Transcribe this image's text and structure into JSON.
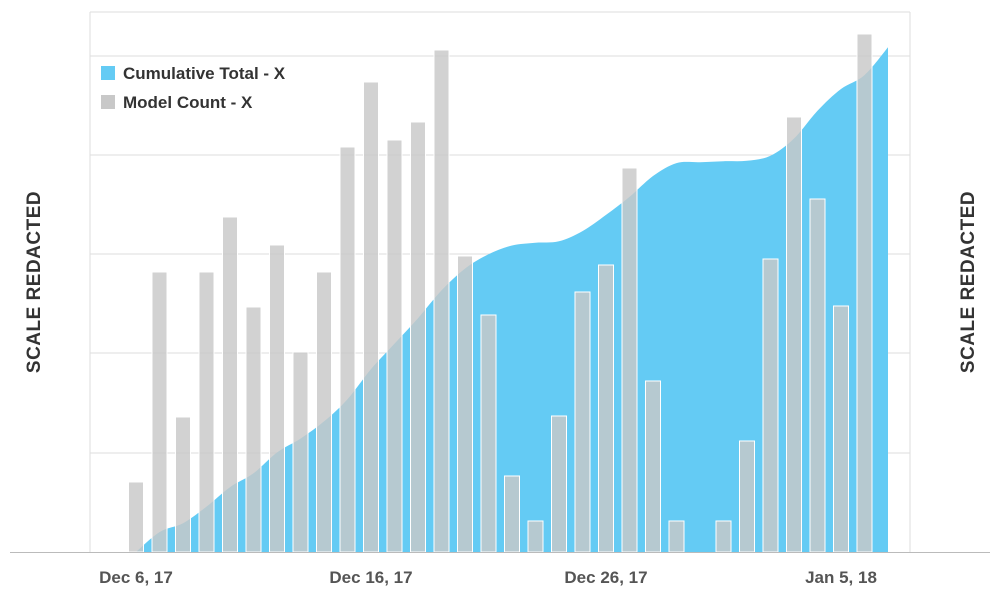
{
  "chart_data": {
    "type": "bar",
    "title": "",
    "xlabel": "",
    "ylabel_left": "SCALE REDACTED",
    "ylabel_right": "SCALE REDACTED",
    "x_tick_labels": [
      {
        "day_index": 0,
        "label": "Dec 6, 17"
      },
      {
        "day_index": 10,
        "label": "Dec 16, 17"
      },
      {
        "day_index": 20,
        "label": "Dec 26, 17"
      },
      {
        "day_index": 30,
        "label": "Jan 5, 18"
      }
    ],
    "grid": true,
    "legend_placement": "top-left",
    "colors": {
      "cumulative": "#64cbf4",
      "bars": "#c8c8c8",
      "grid": "#dddddd",
      "axis": "#bbbbbb"
    },
    "series": [
      {
        "name": "Cumulative Total - X",
        "type": "area",
        "values": [
          0,
          4.3,
          6.2,
          9.8,
          14,
          17,
          21.5,
          24.5,
          28.2,
          33,
          39.5,
          45,
          50.5,
          56.5,
          61.2,
          64.3,
          66.2,
          66.8,
          67.1,
          69.3,
          72.8,
          76.7,
          81.2,
          84,
          84.2,
          84.4,
          84.5,
          85.6,
          89.3,
          95.3,
          100,
          103,
          109
        ]
      },
      {
        "name": "Model Count - X",
        "type": "bar",
        "values": [
          0.7,
          2.8,
          1.35,
          2.8,
          3.35,
          2.45,
          3.07,
          2,
          2.8,
          4.05,
          4.7,
          4.12,
          4.3,
          5.02,
          2.96,
          2.37,
          0.76,
          0.31,
          1.36,
          2.6,
          2.87,
          3.84,
          1.71,
          0.31,
          0,
          0.31,
          1.11,
          2.93,
          4.35,
          3.53,
          2.46,
          5.18
        ]
      }
    ]
  }
}
